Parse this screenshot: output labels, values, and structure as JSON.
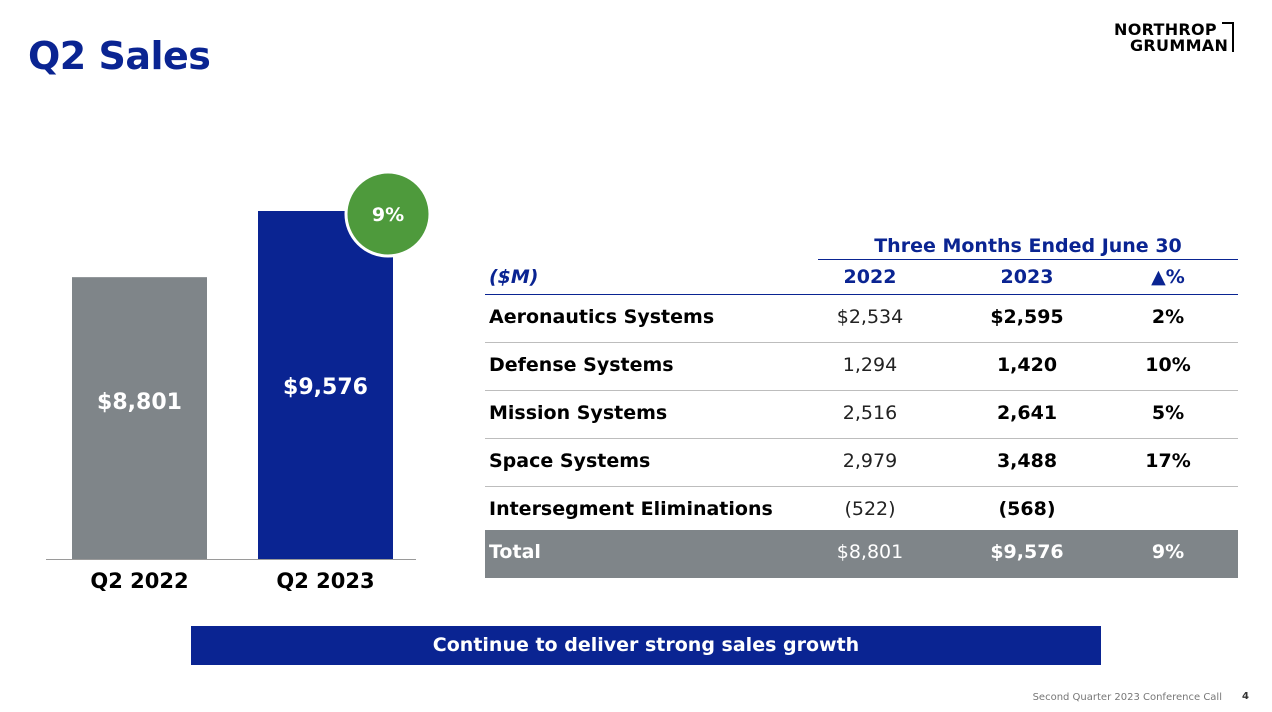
{
  "slide": {
    "title": "Q2 Sales",
    "logo_line1": "NORTHROP",
    "logo_line2": "GRUMMAN",
    "banner": "Continue to deliver strong sales growth",
    "footer": "Second Quarter 2023 Conference Call",
    "page_number": "4"
  },
  "colors": {
    "brand_blue": "#0a2492",
    "bar_gray": "#7f8589",
    "badge_green": "#4e9a3c"
  },
  "chart_data": [
    {
      "type": "bar",
      "categories": [
        "Q2 2022",
        "Q2 2023"
      ],
      "values": [
        8801,
        9576
      ],
      "value_labels": [
        "$8,801",
        "$9,576"
      ],
      "badge": "9%",
      "bar_colors": [
        "#7f8589",
        "#0a2492"
      ]
    },
    {
      "type": "table",
      "group_header": "Three Months Ended June 30",
      "columns": [
        "($M)",
        "2022",
        "2023",
        "▲%"
      ],
      "rows": [
        [
          "Aeronautics Systems",
          "$2,534",
          "$2,595",
          "2%"
        ],
        [
          "Defense Systems",
          "1,294",
          "1,420",
          "10%"
        ],
        [
          "Mission Systems",
          "2,516",
          "2,641",
          "5%"
        ],
        [
          "Space Systems",
          "2,979",
          "3,488",
          "17%"
        ],
        [
          "Intersegment Eliminations",
          "(522)",
          "(568)",
          ""
        ]
      ],
      "total": [
        "Total",
        "$8,801",
        "$9,576",
        "9%"
      ]
    }
  ]
}
